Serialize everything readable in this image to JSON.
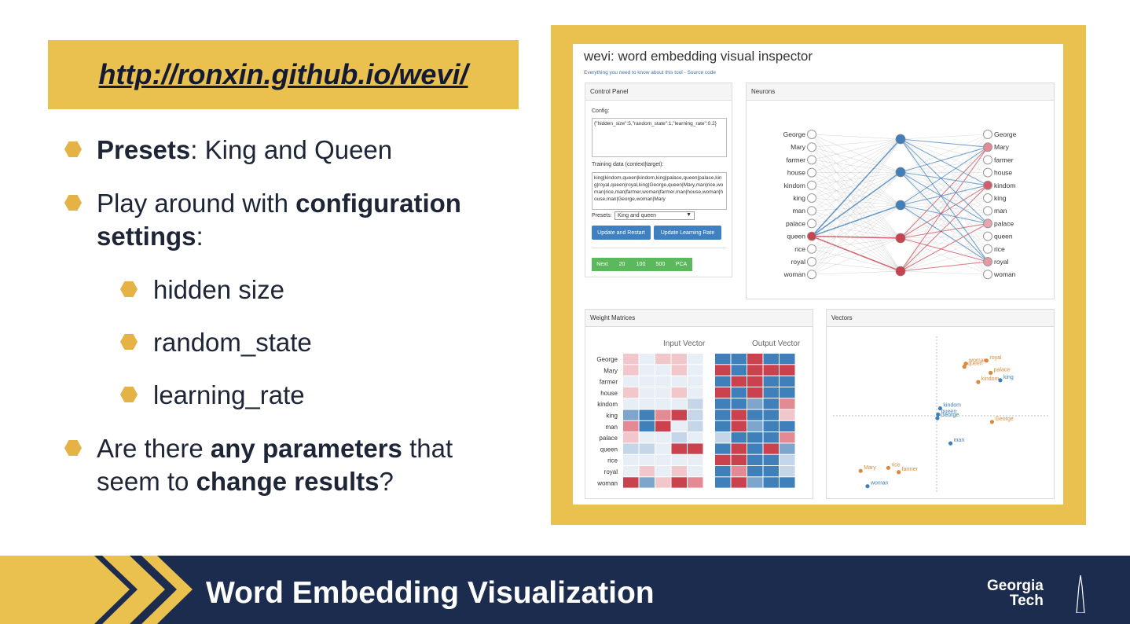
{
  "slide": {
    "url": "http://ronxin.github.io/wevi/",
    "bullets": [
      {
        "bold": "Presets",
        "rest": ": King and Queen"
      },
      {
        "pre": "Play around with ",
        "bold": "configuration",
        "line2bold": "settings",
        "line2rest": ":"
      },
      {
        "text": "hidden size"
      },
      {
        "text": "random_state"
      },
      {
        "text": "learning_rate"
      },
      {
        "pre": "Are there ",
        "bold": "any parameters",
        "post": " that",
        "line2pre": "seem to ",
        "line2bold": "change results",
        "line2post": "?"
      }
    ],
    "footer_title": "Word Embedding Visualization",
    "logo_line1": "Georgia",
    "logo_line2": "Tech"
  },
  "colors": {
    "gold": "#eac04e",
    "navy": "#1c2c4e",
    "blue": "#3f7fba",
    "red": "#c9424e",
    "orange": "#d98a3c"
  },
  "wevi": {
    "title": "wevi: word embedding visual inspector",
    "subtitle": "Everything you need to know about this tool - Source code",
    "control_panel": {
      "header": "Control Panel",
      "config_label": "Config:",
      "config_value": "{\"hidden_size\":5,\"random_state\":1,\"learning_rate\":0.2}",
      "training_label": "Training data (context|target):",
      "training_value": "king|kindom,queen|kindom,king|palace,queen|palace,king|royal,queen|royal,king|George,queen|Mary,man|rice,woman|rice,man|farmer,woman|farmer,man|house,woman|house,man|George,woman|Mary",
      "presets_label": "Presets:",
      "presets_value": "King and queen",
      "update_restart": "Update and Restart",
      "update_lr": "Update Learning Rate",
      "steps": [
        "Next",
        "20",
        "100",
        "500",
        "PCA"
      ]
    },
    "neurons": {
      "header": "Neurons",
      "words": [
        "George",
        "Mary",
        "farmer",
        "house",
        "kindom",
        "king",
        "man",
        "palace",
        "queen",
        "rice",
        "royal",
        "woman"
      ]
    },
    "weights": {
      "header": "Weight Matrices",
      "input_title": "Input Vector",
      "output_title": "Output Vector",
      "rows": [
        "George",
        "Mary",
        "farmer",
        "house",
        "kindom",
        "king",
        "man",
        "palace",
        "queen",
        "rice",
        "royal",
        "woman"
      ]
    },
    "vectors": {
      "header": "Vectors",
      "points": [
        {
          "label": "royal",
          "x": 0.72,
          "y": 0.9,
          "kind": "output"
        },
        {
          "label": "woman",
          "x": 0.42,
          "y": 0.85,
          "kind": "output"
        },
        {
          "label": "queen",
          "x": 0.4,
          "y": 0.8,
          "kind": "output"
        },
        {
          "label": "palace",
          "x": 0.78,
          "y": 0.7,
          "kind": "output"
        },
        {
          "label": "kindom",
          "x": 0.6,
          "y": 0.55,
          "kind": "output"
        },
        {
          "label": "king",
          "x": 0.92,
          "y": 0.58,
          "kind": "input"
        },
        {
          "label": "George",
          "x": 0.8,
          "y": -0.1,
          "kind": "output"
        },
        {
          "label": "kindom",
          "x": 0.05,
          "y": 0.12,
          "kind": "input"
        },
        {
          "label": "queen",
          "x": 0.02,
          "y": 0.02,
          "kind": "input"
        },
        {
          "label": "George",
          "x": 0.01,
          "y": -0.04,
          "kind": "input"
        },
        {
          "label": "man",
          "x": 0.2,
          "y": -0.45,
          "kind": "input"
        },
        {
          "label": "Mary",
          "x": -1.1,
          "y": -0.9,
          "kind": "output"
        },
        {
          "label": "rice",
          "x": -0.7,
          "y": -0.85,
          "kind": "output"
        },
        {
          "label": "farmer",
          "x": -0.55,
          "y": -0.92,
          "kind": "output"
        },
        {
          "label": "woman",
          "x": -1.0,
          "y": -1.15,
          "kind": "input"
        }
      ]
    }
  }
}
